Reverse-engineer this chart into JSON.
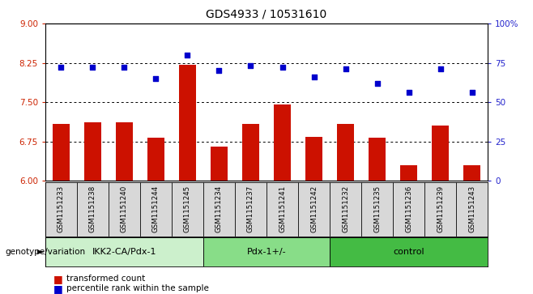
{
  "title": "GDS4933 / 10531610",
  "samples": [
    "GSM1151233",
    "GSM1151238",
    "GSM1151240",
    "GSM1151244",
    "GSM1151245",
    "GSM1151234",
    "GSM1151237",
    "GSM1151241",
    "GSM1151242",
    "GSM1151232",
    "GSM1151235",
    "GSM1151236",
    "GSM1151239",
    "GSM1151243"
  ],
  "bar_values": [
    7.08,
    7.12,
    7.12,
    6.82,
    8.22,
    6.65,
    7.08,
    7.45,
    6.84,
    7.08,
    6.82,
    6.3,
    7.05,
    6.3
  ],
  "percentile_values": [
    72,
    72,
    72,
    65,
    80,
    70,
    73,
    72,
    66,
    71,
    62,
    56,
    71,
    56
  ],
  "groups": [
    {
      "label": "IKK2-CA/Pdx-1",
      "start": 0,
      "end": 5,
      "color": "#ccf0cc"
    },
    {
      "label": "Pdx-1+/-",
      "start": 5,
      "end": 9,
      "color": "#88dd88"
    },
    {
      "label": "control",
      "start": 9,
      "end": 14,
      "color": "#44bb44"
    }
  ],
  "ylim_left": [
    6.0,
    9.0
  ],
  "ylim_right": [
    0,
    100
  ],
  "yticks_left": [
    6.0,
    6.75,
    7.5,
    8.25,
    9.0
  ],
  "yticks_right": [
    0,
    25,
    50,
    75,
    100
  ],
  "hlines": [
    6.75,
    7.5,
    8.25
  ],
  "bar_color": "#cc1100",
  "percentile_color": "#0000cc",
  "bar_width": 0.55,
  "legend_bar_label": "transformed count",
  "legend_pct_label": "percentile rank within the sample",
  "genotype_label": "genotype/variation"
}
